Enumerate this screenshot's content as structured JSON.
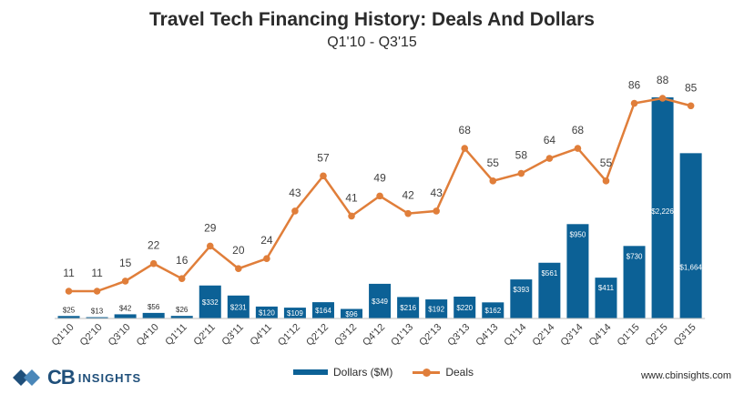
{
  "chart_data": {
    "type": "bar",
    "title": "Travel Tech Financing History: Deals And Dollars",
    "subtitle": "Q1'10 - Q3'15",
    "categories": [
      "Q1'10",
      "Q2'10",
      "Q3'10",
      "Q4'10",
      "Q1'11",
      "Q2'11",
      "Q3'11",
      "Q4'11",
      "Q1'12",
      "Q2'12",
      "Q3'12",
      "Q4'12",
      "Q1'13",
      "Q2'13",
      "Q3'13",
      "Q4'13",
      "Q1'14",
      "Q2'14",
      "Q3'14",
      "Q4'14",
      "Q1'15",
      "Q2'15",
      "Q3'15"
    ],
    "series": [
      {
        "name": "Dollars ($M)",
        "type": "bar",
        "color": "#0c6196",
        "values": [
          25,
          13,
          42,
          56,
          26,
          332,
          231,
          120,
          109,
          164,
          96,
          349,
          216,
          192,
          220,
          162,
          393,
          561,
          950,
          411,
          730,
          2226,
          1664
        ],
        "labels": [
          "$25",
          "$13",
          "$42",
          "$56",
          "$26",
          "$332",
          "$231",
          "$120",
          "$109",
          "$164",
          "$96",
          "$349",
          "$216",
          "$192",
          "$220",
          "$162",
          "$393",
          "$561",
          "$950",
          "$411",
          "$730",
          "$2,226",
          "$1,664"
        ]
      },
      {
        "name": "Deals",
        "type": "line",
        "color": "#e07e3a",
        "values": [
          11,
          11,
          15,
          22,
          16,
          29,
          20,
          24,
          43,
          57,
          41,
          49,
          42,
          43,
          68,
          55,
          58,
          64,
          68,
          55,
          86,
          88,
          85
        ]
      }
    ],
    "legend": "bottom-center",
    "grid": false
  },
  "footer": {
    "brand_cb": "CB",
    "brand_insights": "INSIGHTS",
    "website": "www.cbinsights.com"
  }
}
